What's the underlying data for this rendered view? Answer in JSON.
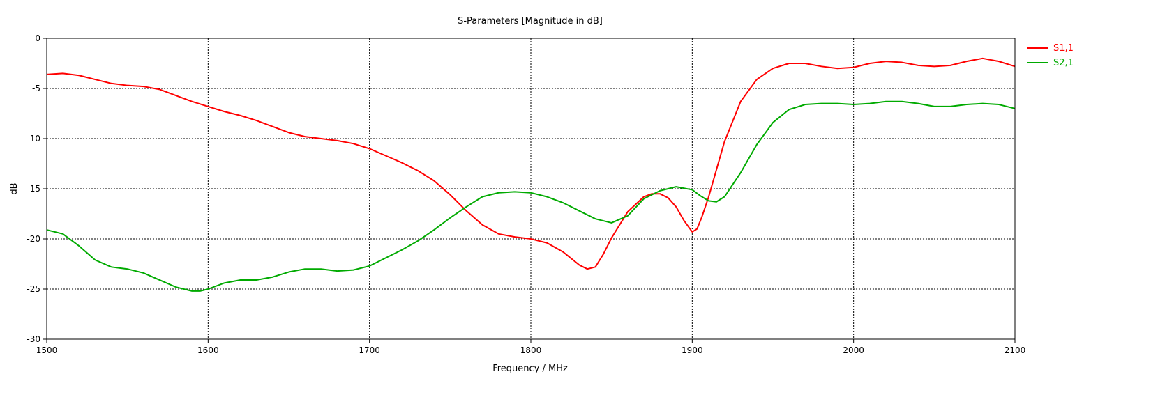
{
  "chart_data": {
    "type": "line",
    "title": "S-Parameters [Magnitude in dB]",
    "xlabel": "Frequency / MHz",
    "ylabel": "dB",
    "xlim": [
      1500,
      2100
    ],
    "ylim": [
      -30,
      0
    ],
    "xticks": [
      1500,
      1600,
      1700,
      1800,
      1900,
      2000,
      2100
    ],
    "yticks": [
      0,
      -5,
      -10,
      -15,
      -20,
      -25,
      -30
    ],
    "grid": true,
    "legend_position": "right",
    "series": [
      {
        "name": "S1,1",
        "color": "#ff0000",
        "x": [
          1500,
          1510,
          1520,
          1530,
          1540,
          1550,
          1560,
          1570,
          1580,
          1590,
          1600,
          1610,
          1620,
          1630,
          1640,
          1650,
          1660,
          1670,
          1680,
          1690,
          1700,
          1710,
          1720,
          1730,
          1740,
          1750,
          1760,
          1770,
          1780,
          1790,
          1800,
          1810,
          1820,
          1830,
          1835,
          1840,
          1845,
          1850,
          1860,
          1870,
          1875,
          1880,
          1885,
          1890,
          1895,
          1900,
          1903,
          1906,
          1910,
          1915,
          1920,
          1930,
          1940,
          1950,
          1960,
          1970,
          1980,
          1990,
          2000,
          2010,
          2020,
          2030,
          2040,
          2050,
          2060,
          2070,
          2080,
          2090,
          2100
        ],
        "y": [
          -3.6,
          -3.5,
          -3.7,
          -4.1,
          -4.5,
          -4.7,
          -4.8,
          -5.1,
          -5.7,
          -6.3,
          -6.8,
          -7.3,
          -7.7,
          -8.2,
          -8.8,
          -9.4,
          -9.8,
          -10.0,
          -10.2,
          -10.5,
          -11.0,
          -11.7,
          -12.4,
          -13.2,
          -14.2,
          -15.6,
          -17.2,
          -18.6,
          -19.5,
          -19.8,
          -20.0,
          -20.4,
          -21.3,
          -22.6,
          -23.0,
          -22.8,
          -21.5,
          -19.9,
          -17.3,
          -15.8,
          -15.5,
          -15.5,
          -15.9,
          -16.8,
          -18.2,
          -19.3,
          -19.0,
          -17.8,
          -15.9,
          -13.1,
          -10.3,
          -6.3,
          -4.1,
          -3.0,
          -2.5,
          -2.5,
          -2.8,
          -3.0,
          -2.9,
          -2.5,
          -2.3,
          -2.4,
          -2.7,
          -2.8,
          -2.7,
          -2.3,
          -2.0,
          -2.3,
          -2.8
        ]
      },
      {
        "name": "S2,1",
        "color": "#00aa00",
        "x": [
          1500,
          1510,
          1520,
          1530,
          1540,
          1550,
          1560,
          1570,
          1580,
          1590,
          1595,
          1600,
          1610,
          1620,
          1630,
          1640,
          1650,
          1660,
          1670,
          1680,
          1690,
          1700,
          1710,
          1720,
          1730,
          1740,
          1750,
          1760,
          1770,
          1780,
          1790,
          1800,
          1810,
          1820,
          1830,
          1840,
          1850,
          1860,
          1870,
          1880,
          1890,
          1900,
          1905,
          1910,
          1915,
          1920,
          1930,
          1940,
          1950,
          1960,
          1970,
          1980,
          1990,
          2000,
          2010,
          2020,
          2030,
          2040,
          2050,
          2060,
          2070,
          2080,
          2090,
          2100
        ],
        "y": [
          -19.1,
          -19.5,
          -20.7,
          -22.1,
          -22.8,
          -23.0,
          -23.4,
          -24.1,
          -24.8,
          -25.2,
          -25.2,
          -25.0,
          -24.4,
          -24.1,
          -24.1,
          -23.8,
          -23.3,
          -23.0,
          -23.0,
          -23.2,
          -23.1,
          -22.7,
          -21.9,
          -21.1,
          -20.2,
          -19.1,
          -17.9,
          -16.8,
          -15.8,
          -15.4,
          -15.3,
          -15.4,
          -15.8,
          -16.4,
          -17.2,
          -18.0,
          -18.4,
          -17.7,
          -16.0,
          -15.2,
          -14.8,
          -15.1,
          -15.7,
          -16.2,
          -16.3,
          -15.8,
          -13.4,
          -10.6,
          -8.4,
          -7.1,
          -6.6,
          -6.5,
          -6.5,
          -6.6,
          -6.5,
          -6.3,
          -6.3,
          -6.5,
          -6.8,
          -6.8,
          -6.6,
          -6.5,
          -6.6,
          -7.0
        ]
      }
    ]
  }
}
